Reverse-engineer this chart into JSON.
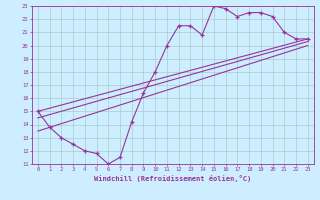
{
  "xlabel": "Windchill (Refroidissement éolien,°C)",
  "bg_color": "#cceeff",
  "grid_color": "#aacccc",
  "line_color": "#993399",
  "xmin": 0,
  "xmax": 23,
  "ymin": 11,
  "ymax": 23,
  "hours": [
    0,
    1,
    2,
    3,
    4,
    5,
    6,
    7,
    8,
    9,
    10,
    11,
    12,
    13,
    14,
    15,
    16,
    17,
    18,
    19,
    20,
    21,
    22,
    23
  ],
  "temp": [
    15.0,
    13.8,
    13.0,
    12.5,
    12.0,
    11.8,
    11.0,
    11.5,
    14.2,
    16.4,
    18.0,
    20.0,
    21.5,
    21.5,
    20.8,
    23.0,
    22.8,
    22.2,
    22.5,
    22.5,
    22.2,
    21.0,
    20.5,
    20.5
  ],
  "line1": [
    [
      0,
      15.0
    ],
    [
      23,
      20.5
    ]
  ],
  "line2": [
    [
      0,
      14.5
    ],
    [
      23,
      20.3
    ]
  ],
  "line3": [
    [
      0,
      13.5
    ],
    [
      23,
      20.0
    ]
  ]
}
